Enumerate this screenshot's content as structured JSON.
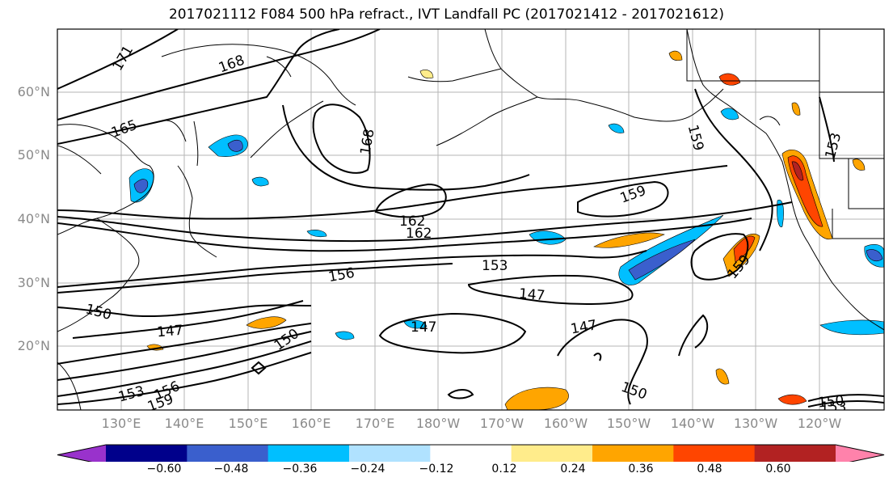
{
  "title": "2017021112 F084 500 hPa refract., IVT Landfall PC (2017021412 - 2017021612)",
  "lat_labels": [
    "60°N",
    "50°N",
    "40°N",
    "30°N",
    "20°N"
  ],
  "lon_labels": [
    "130°E",
    "140°E",
    "150°E",
    "160°E",
    "170°E",
    "180°W",
    "170°W",
    "160°W",
    "150°W",
    "140°W",
    "130°W",
    "120°W"
  ],
  "contour_labels": [
    "171",
    "168",
    "165",
    "168",
    "162",
    "162",
    "159",
    "159",
    "159",
    "156",
    "153",
    "153",
    "150",
    "147",
    "147",
    "147",
    "147",
    "150",
    "150",
    "153",
    "156",
    "159",
    "150",
    "153"
  ],
  "colorbar": {
    "colors": [
      "#9932cc",
      "#00008b",
      "#3a5fcd",
      "#00bfff",
      "#b0e2ff",
      "#ffffff",
      "#ffec8b",
      "#ffa500",
      "#ff4500",
      "#b22222",
      "#ff82ab"
    ],
    "ticks": [
      "−0.60",
      "−0.48",
      "−0.36",
      "−0.24",
      "−0.12",
      "0.12",
      "0.24",
      "0.36",
      "0.48",
      "0.60"
    ]
  }
}
